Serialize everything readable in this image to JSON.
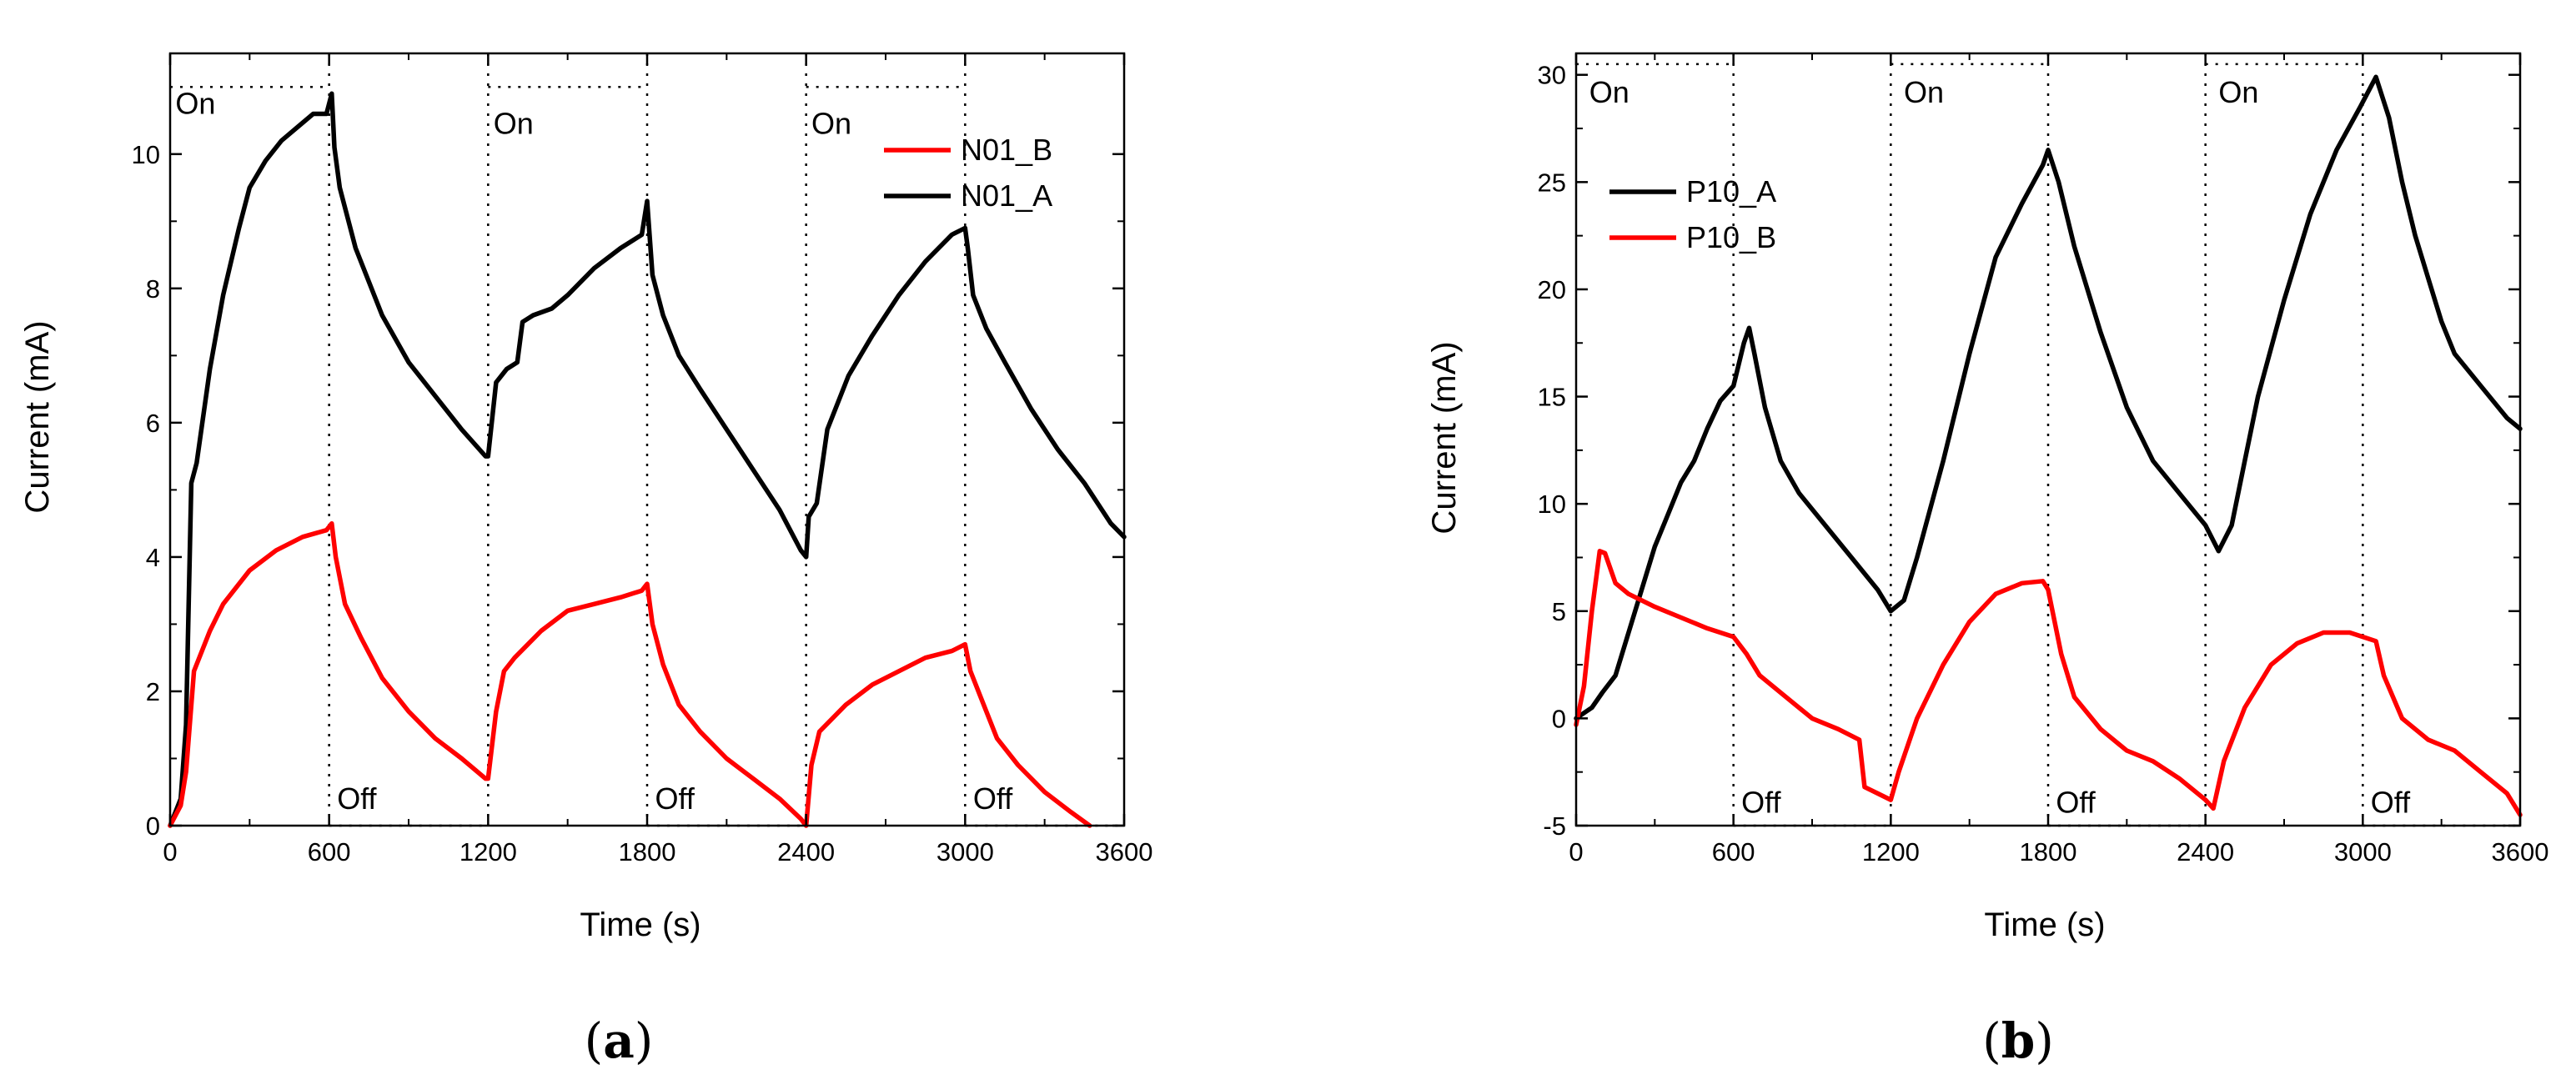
{
  "chart_data": [
    {
      "panel": "a",
      "type": "line",
      "xlabel": "Time (s)",
      "ylabel": "Current (mA)",
      "xlim": [
        0,
        3600
      ],
      "ylim": [
        0,
        11.5
      ],
      "xticks": [
        0,
        600,
        1200,
        1800,
        2400,
        3000,
        3600
      ],
      "yticks": [
        0,
        2,
        4,
        6,
        8,
        10
      ],
      "grid": false,
      "legend_position": "top-right",
      "legend_order": [
        "N01_B",
        "N01_A"
      ],
      "phase_on_level": 11,
      "phase_off_level": 0,
      "phase_boundaries": [
        600,
        1200,
        1800,
        2400,
        3000
      ],
      "annotations": [
        {
          "text": "On",
          "x": 20,
          "y": 10.6
        },
        {
          "text": "On",
          "x": 1220,
          "y": 10.3
        },
        {
          "text": "On",
          "x": 2420,
          "y": 10.3
        },
        {
          "text": "Off",
          "x": 630,
          "y": 0.25
        },
        {
          "text": "Off",
          "x": 1830,
          "y": 0.25
        },
        {
          "text": "Off",
          "x": 3030,
          "y": 0.25
        }
      ],
      "series": [
        {
          "name": "N01_A",
          "color": "#000000",
          "points": [
            [
              0,
              0
            ],
            [
              40,
              0.4
            ],
            [
              60,
              1.5
            ],
            [
              80,
              5.1
            ],
            [
              100,
              5.4
            ],
            [
              150,
              6.8
            ],
            [
              200,
              7.9
            ],
            [
              260,
              8.9
            ],
            [
              300,
              9.5
            ],
            [
              360,
              9.9
            ],
            [
              420,
              10.2
            ],
            [
              480,
              10.4
            ],
            [
              540,
              10.6
            ],
            [
              590,
              10.6
            ],
            [
              610,
              10.9
            ],
            [
              620,
              10.1
            ],
            [
              640,
              9.5
            ],
            [
              700,
              8.6
            ],
            [
              800,
              7.6
            ],
            [
              900,
              6.9
            ],
            [
              1000,
              6.4
            ],
            [
              1100,
              5.9
            ],
            [
              1190,
              5.5
            ],
            [
              1200,
              5.5
            ],
            [
              1230,
              6.6
            ],
            [
              1270,
              6.8
            ],
            [
              1310,
              6.9
            ],
            [
              1330,
              7.5
            ],
            [
              1370,
              7.6
            ],
            [
              1440,
              7.7
            ],
            [
              1500,
              7.9
            ],
            [
              1600,
              8.3
            ],
            [
              1700,
              8.6
            ],
            [
              1780,
              8.8
            ],
            [
              1800,
              9.3
            ],
            [
              1820,
              8.2
            ],
            [
              1860,
              7.6
            ],
            [
              1920,
              7.0
            ],
            [
              2000,
              6.5
            ],
            [
              2100,
              5.9
            ],
            [
              2200,
              5.3
            ],
            [
              2300,
              4.7
            ],
            [
              2380,
              4.1
            ],
            [
              2400,
              4.0
            ],
            [
              2410,
              4.6
            ],
            [
              2440,
              4.8
            ],
            [
              2480,
              5.9
            ],
            [
              2560,
              6.7
            ],
            [
              2650,
              7.3
            ],
            [
              2750,
              7.9
            ],
            [
              2850,
              8.4
            ],
            [
              2950,
              8.8
            ],
            [
              3000,
              8.9
            ],
            [
              3010,
              8.6
            ],
            [
              3030,
              7.9
            ],
            [
              3080,
              7.4
            ],
            [
              3150,
              6.9
            ],
            [
              3250,
              6.2
            ],
            [
              3350,
              5.6
            ],
            [
              3450,
              5.1
            ],
            [
              3550,
              4.5
            ],
            [
              3600,
              4.3
            ]
          ]
        },
        {
          "name": "N01_B",
          "color": "#ff0000",
          "points": [
            [
              0,
              0
            ],
            [
              40,
              0.3
            ],
            [
              60,
              0.8
            ],
            [
              90,
              2.3
            ],
            [
              150,
              2.9
            ],
            [
              200,
              3.3
            ],
            [
              300,
              3.8
            ],
            [
              400,
              4.1
            ],
            [
              500,
              4.3
            ],
            [
              590,
              4.4
            ],
            [
              610,
              4.5
            ],
            [
              625,
              4.0
            ],
            [
              660,
              3.3
            ],
            [
              720,
              2.8
            ],
            [
              800,
              2.2
            ],
            [
              900,
              1.7
            ],
            [
              1000,
              1.3
            ],
            [
              1100,
              1.0
            ],
            [
              1190,
              0.7
            ],
            [
              1200,
              0.7
            ],
            [
              1230,
              1.7
            ],
            [
              1260,
              2.3
            ],
            [
              1300,
              2.5
            ],
            [
              1400,
              2.9
            ],
            [
              1500,
              3.2
            ],
            [
              1600,
              3.3
            ],
            [
              1700,
              3.4
            ],
            [
              1780,
              3.5
            ],
            [
              1800,
              3.6
            ],
            [
              1820,
              3.0
            ],
            [
              1860,
              2.4
            ],
            [
              1920,
              1.8
            ],
            [
              2000,
              1.4
            ],
            [
              2100,
              1.0
            ],
            [
              2200,
              0.7
            ],
            [
              2300,
              0.4
            ],
            [
              2380,
              0.1
            ],
            [
              2400,
              0.0
            ],
            [
              2420,
              0.9
            ],
            [
              2450,
              1.4
            ],
            [
              2550,
              1.8
            ],
            [
              2650,
              2.1
            ],
            [
              2750,
              2.3
            ],
            [
              2850,
              2.5
            ],
            [
              2950,
              2.6
            ],
            [
              3000,
              2.7
            ],
            [
              3020,
              2.3
            ],
            [
              3060,
              1.9
            ],
            [
              3120,
              1.3
            ],
            [
              3200,
              0.9
            ],
            [
              3300,
              0.5
            ],
            [
              3400,
              0.2
            ],
            [
              3470,
              0.0
            ]
          ]
        }
      ]
    },
    {
      "panel": "b",
      "type": "line",
      "xlabel": "Time (s)",
      "ylabel": "Current (mA)",
      "xlim": [
        0,
        3600
      ],
      "ylim": [
        -5,
        31
      ],
      "xticks": [
        0,
        600,
        1200,
        1800,
        2400,
        3000,
        3600
      ],
      "yticks": [
        -5,
        0,
        5,
        10,
        15,
        20,
        25,
        30
      ],
      "grid": false,
      "legend_position": "top-left",
      "legend_order": [
        "P10_A",
        "P10_B"
      ],
      "phase_on_level": 30.5,
      "phase_off_level": -5,
      "phase_boundaries": [
        600,
        1200,
        1800,
        2400,
        3000
      ],
      "annotations": [
        {
          "text": "On",
          "x": 50,
          "y": 28.7
        },
        {
          "text": "On",
          "x": 1250,
          "y": 28.7
        },
        {
          "text": "On",
          "x": 2450,
          "y": 28.7
        },
        {
          "text": "Off",
          "x": 630,
          "y": -4.4
        },
        {
          "text": "Off",
          "x": 1830,
          "y": -4.4
        },
        {
          "text": "Off",
          "x": 3030,
          "y": -4.4
        }
      ],
      "series": [
        {
          "name": "P10_A",
          "color": "#000000",
          "points": [
            [
              0,
              0
            ],
            [
              60,
              0.5
            ],
            [
              100,
              1.2
            ],
            [
              150,
              2
            ],
            [
              200,
              4
            ],
            [
              250,
              6
            ],
            [
              300,
              8
            ],
            [
              350,
              9.5
            ],
            [
              400,
              11
            ],
            [
              450,
              12
            ],
            [
              500,
              13.5
            ],
            [
              550,
              14.8
            ],
            [
              600,
              15.5
            ],
            [
              640,
              17.5
            ],
            [
              660,
              18.2
            ],
            [
              680,
              17
            ],
            [
              720,
              14.5
            ],
            [
              780,
              12
            ],
            [
              850,
              10.5
            ],
            [
              950,
              9
            ],
            [
              1050,
              7.5
            ],
            [
              1150,
              6
            ],
            [
              1200,
              5
            ],
            [
              1250,
              5.5
            ],
            [
              1300,
              7.5
            ],
            [
              1400,
              12
            ],
            [
              1500,
              17
            ],
            [
              1600,
              21.5
            ],
            [
              1700,
              24
            ],
            [
              1780,
              25.8
            ],
            [
              1800,
              26.5
            ],
            [
              1840,
              25
            ],
            [
              1900,
              22
            ],
            [
              2000,
              18
            ],
            [
              2100,
              14.5
            ],
            [
              2200,
              12
            ],
            [
              2300,
              10.5
            ],
            [
              2400,
              9
            ],
            [
              2450,
              7.8
            ],
            [
              2500,
              9
            ],
            [
              2550,
              12
            ],
            [
              2600,
              15
            ],
            [
              2700,
              19.5
            ],
            [
              2800,
              23.5
            ],
            [
              2900,
              26.5
            ],
            [
              2990,
              28.5
            ],
            [
              3050,
              29.9
            ],
            [
              3100,
              28
            ],
            [
              3150,
              25
            ],
            [
              3200,
              22.5
            ],
            [
              3250,
              20.5
            ],
            [
              3300,
              18.5
            ],
            [
              3350,
              17
            ],
            [
              3450,
              15.5
            ],
            [
              3550,
              14
            ],
            [
              3600,
              13.5
            ]
          ]
        },
        {
          "name": "P10_B",
          "color": "#ff0000",
          "points": [
            [
              0,
              -0.3
            ],
            [
              30,
              1.5
            ],
            [
              60,
              5
            ],
            [
              90,
              7.8
            ],
            [
              110,
              7.7
            ],
            [
              150,
              6.3
            ],
            [
              200,
              5.8
            ],
            [
              300,
              5.2
            ],
            [
              400,
              4.7
            ],
            [
              500,
              4.2
            ],
            [
              600,
              3.8
            ],
            [
              650,
              3
            ],
            [
              700,
              2
            ],
            [
              800,
              1
            ],
            [
              900,
              0
            ],
            [
              1000,
              -0.5
            ],
            [
              1080,
              -1
            ],
            [
              1100,
              -3.2
            ],
            [
              1150,
              -3.5
            ],
            [
              1200,
              -3.8
            ],
            [
              1230,
              -2.5
            ],
            [
              1300,
              0
            ],
            [
              1400,
              2.5
            ],
            [
              1500,
              4.5
            ],
            [
              1600,
              5.8
            ],
            [
              1700,
              6.3
            ],
            [
              1780,
              6.4
            ],
            [
              1800,
              6
            ],
            [
              1850,
              3
            ],
            [
              1900,
              1
            ],
            [
              2000,
              -0.5
            ],
            [
              2100,
              -1.5
            ],
            [
              2200,
              -2
            ],
            [
              2300,
              -2.8
            ],
            [
              2400,
              -3.8
            ],
            [
              2430,
              -4.2
            ],
            [
              2470,
              -2
            ],
            [
              2550,
              0.5
            ],
            [
              2650,
              2.5
            ],
            [
              2750,
              3.5
            ],
            [
              2850,
              4
            ],
            [
              2950,
              4
            ],
            [
              3000,
              3.8
            ],
            [
              3050,
              3.6
            ],
            [
              3080,
              2
            ],
            [
              3150,
              0
            ],
            [
              3250,
              -1
            ],
            [
              3350,
              -1.5
            ],
            [
              3450,
              -2.5
            ],
            [
              3550,
              -3.5
            ],
            [
              3600,
              -4.5
            ]
          ]
        }
      ]
    }
  ],
  "panel_labels": [
    {
      "open": "(",
      "letter": "a",
      "close": ")"
    },
    {
      "open": "(",
      "letter": "b",
      "close": ")"
    }
  ]
}
